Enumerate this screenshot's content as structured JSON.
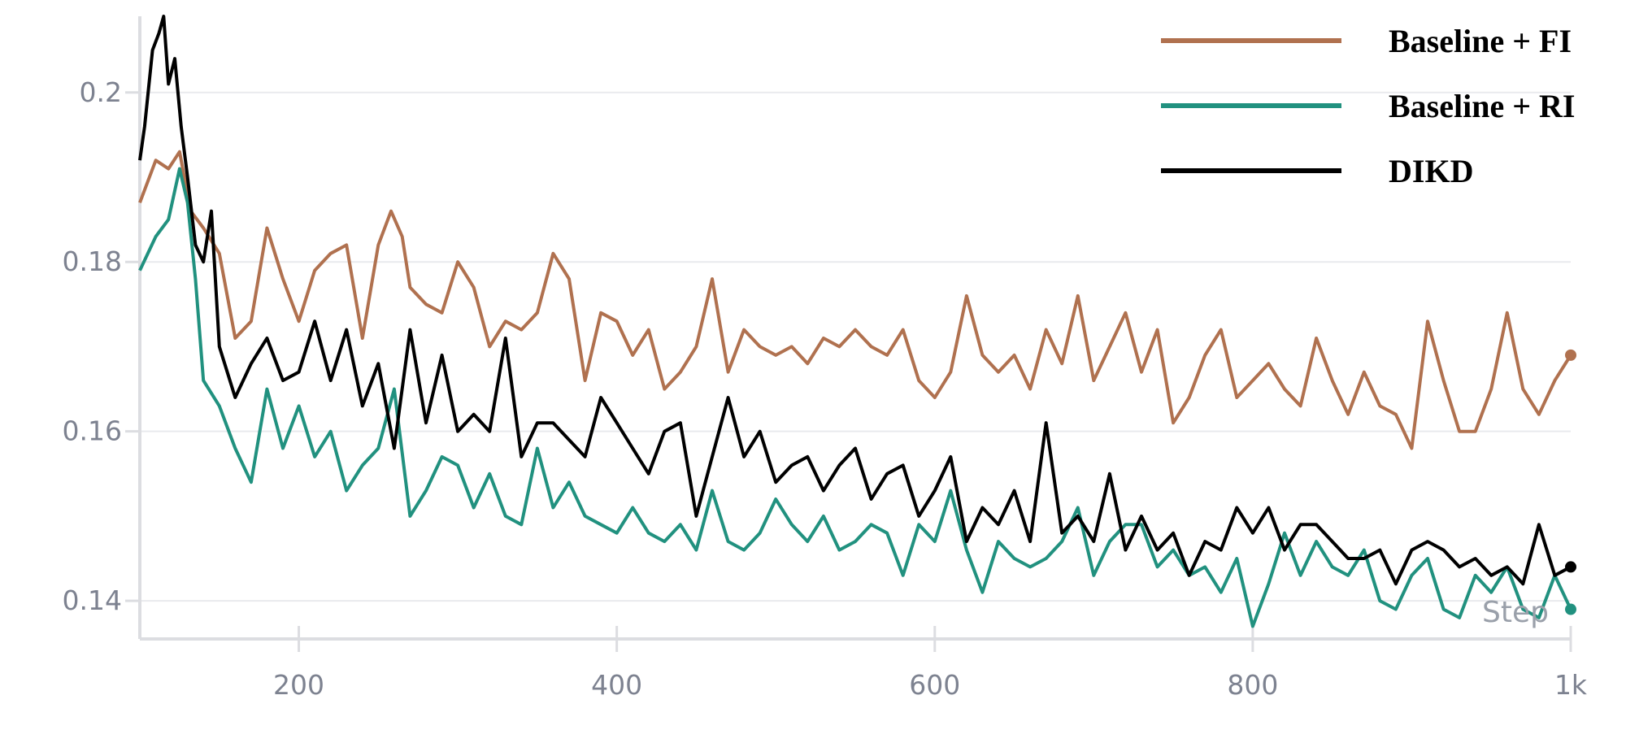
{
  "chart_data": {
    "type": "line",
    "xlabel": "Step",
    "ylabel": "",
    "title": "",
    "xlim": [
      100,
      1000
    ],
    "ylim": [
      0.1355,
      0.209
    ],
    "grid": true,
    "legend_position": "top-right",
    "x_ticks": [
      {
        "value": 200,
        "label": "200"
      },
      {
        "value": 400,
        "label": "400"
      },
      {
        "value": 600,
        "label": "600"
      },
      {
        "value": 800,
        "label": "800"
      },
      {
        "value": 1000,
        "label": "1k"
      }
    ],
    "y_ticks": [
      {
        "value": 0.14,
        "label": "0.14"
      },
      {
        "value": 0.16,
        "label": "0.16"
      },
      {
        "value": 0.18,
        "label": "0.18"
      },
      {
        "value": 0.2,
        "label": "0.2"
      }
    ],
    "series": [
      {
        "name": "Baseline + FI",
        "color": "#b0714f",
        "x": [
          100,
          110,
          118,
          125,
          132,
          140,
          150,
          160,
          170,
          180,
          190,
          200,
          210,
          220,
          230,
          240,
          250,
          258,
          265,
          270,
          280,
          290,
          300,
          310,
          320,
          330,
          340,
          350,
          360,
          370,
          380,
          390,
          400,
          410,
          420,
          430,
          440,
          450,
          460,
          470,
          480,
          490,
          500,
          510,
          520,
          530,
          540,
          550,
          560,
          570,
          580,
          590,
          600,
          610,
          620,
          630,
          640,
          650,
          660,
          670,
          680,
          690,
          700,
          710,
          720,
          730,
          740,
          750,
          760,
          770,
          780,
          790,
          800,
          810,
          820,
          830,
          840,
          850,
          860,
          870,
          880,
          890,
          900,
          910,
          920,
          930,
          940,
          950,
          960,
          970,
          980,
          990,
          1000
        ],
        "y": [
          0.187,
          0.192,
          0.191,
          0.193,
          0.186,
          0.184,
          0.181,
          0.171,
          0.173,
          0.184,
          0.178,
          0.173,
          0.179,
          0.181,
          0.182,
          0.171,
          0.182,
          0.186,
          0.183,
          0.177,
          0.175,
          0.174,
          0.18,
          0.177,
          0.17,
          0.173,
          0.172,
          0.174,
          0.181,
          0.178,
          0.166,
          0.174,
          0.173,
          0.169,
          0.172,
          0.165,
          0.167,
          0.17,
          0.178,
          0.167,
          0.172,
          0.17,
          0.169,
          0.17,
          0.168,
          0.171,
          0.17,
          0.172,
          0.17,
          0.169,
          0.172,
          0.166,
          0.164,
          0.167,
          0.176,
          0.169,
          0.167,
          0.169,
          0.165,
          0.172,
          0.168,
          0.176,
          0.166,
          0.17,
          0.174,
          0.167,
          0.172,
          0.161,
          0.164,
          0.169,
          0.172,
          0.164,
          0.166,
          0.168,
          0.165,
          0.163,
          0.171,
          0.166,
          0.162,
          0.167,
          0.163,
          0.162,
          0.158,
          0.173,
          0.166,
          0.16,
          0.16,
          0.165,
          0.174,
          0.165,
          0.162,
          0.166,
          0.169
        ]
      },
      {
        "name": "Baseline + RI",
        "color": "#21917f",
        "x": [
          100,
          110,
          118,
          125,
          130,
          135,
          140,
          150,
          160,
          170,
          180,
          190,
          200,
          210,
          220,
          230,
          240,
          250,
          260,
          270,
          280,
          290,
          300,
          310,
          320,
          330,
          340,
          350,
          360,
          370,
          380,
          390,
          400,
          410,
          420,
          430,
          440,
          450,
          460,
          470,
          480,
          490,
          500,
          510,
          520,
          530,
          540,
          550,
          560,
          570,
          580,
          590,
          600,
          610,
          620,
          630,
          640,
          650,
          660,
          670,
          680,
          690,
          700,
          710,
          720,
          730,
          740,
          750,
          760,
          770,
          780,
          790,
          800,
          810,
          820,
          830,
          840,
          850,
          860,
          870,
          880,
          890,
          900,
          910,
          920,
          930,
          940,
          950,
          960,
          970,
          980,
          990,
          1000
        ],
        "y": [
          0.179,
          0.183,
          0.185,
          0.191,
          0.187,
          0.178,
          0.166,
          0.163,
          0.158,
          0.154,
          0.165,
          0.158,
          0.163,
          0.157,
          0.16,
          0.153,
          0.156,
          0.158,
          0.165,
          0.15,
          0.153,
          0.157,
          0.156,
          0.151,
          0.155,
          0.15,
          0.149,
          0.158,
          0.151,
          0.154,
          0.15,
          0.149,
          0.148,
          0.151,
          0.148,
          0.147,
          0.149,
          0.146,
          0.153,
          0.147,
          0.146,
          0.148,
          0.152,
          0.149,
          0.147,
          0.15,
          0.146,
          0.147,
          0.149,
          0.148,
          0.143,
          0.149,
          0.147,
          0.153,
          0.146,
          0.141,
          0.147,
          0.145,
          0.144,
          0.145,
          0.147,
          0.151,
          0.143,
          0.147,
          0.149,
          0.149,
          0.144,
          0.146,
          0.143,
          0.144,
          0.141,
          0.145,
          0.137,
          0.142,
          0.148,
          0.143,
          0.147,
          0.144,
          0.143,
          0.146,
          0.14,
          0.139,
          0.143,
          0.145,
          0.139,
          0.138,
          0.143,
          0.141,
          0.144,
          0.139,
          0.138,
          0.143,
          0.139
        ]
      },
      {
        "name": "DIKD",
        "color": "#000000",
        "x": [
          100,
          103,
          108,
          112,
          115,
          118,
          122,
          126,
          130,
          135,
          140,
          145,
          150,
          160,
          170,
          180,
          190,
          200,
          210,
          220,
          230,
          240,
          250,
          260,
          270,
          280,
          290,
          300,
          310,
          320,
          330,
          340,
          350,
          360,
          370,
          380,
          390,
          400,
          410,
          420,
          430,
          440,
          450,
          460,
          470,
          480,
          490,
          500,
          510,
          520,
          530,
          540,
          550,
          560,
          570,
          580,
          590,
          600,
          610,
          620,
          630,
          640,
          650,
          660,
          670,
          680,
          690,
          700,
          710,
          720,
          730,
          740,
          750,
          760,
          770,
          780,
          790,
          800,
          810,
          820,
          830,
          840,
          850,
          860,
          870,
          880,
          890,
          900,
          910,
          920,
          930,
          940,
          950,
          960,
          970,
          980,
          990,
          1000
        ],
        "y": [
          0.192,
          0.196,
          0.205,
          0.207,
          0.209,
          0.201,
          0.204,
          0.196,
          0.19,
          0.182,
          0.18,
          0.186,
          0.17,
          0.164,
          0.168,
          0.171,
          0.166,
          0.167,
          0.173,
          0.166,
          0.172,
          0.163,
          0.168,
          0.158,
          0.172,
          0.161,
          0.169,
          0.16,
          0.162,
          0.16,
          0.171,
          0.157,
          0.161,
          0.161,
          0.159,
          0.157,
          0.164,
          0.161,
          0.158,
          0.155,
          0.16,
          0.161,
          0.15,
          0.157,
          0.164,
          0.157,
          0.16,
          0.154,
          0.156,
          0.157,
          0.153,
          0.156,
          0.158,
          0.152,
          0.155,
          0.156,
          0.15,
          0.153,
          0.157,
          0.147,
          0.151,
          0.149,
          0.153,
          0.147,
          0.161,
          0.148,
          0.15,
          0.147,
          0.155,
          0.146,
          0.15,
          0.146,
          0.148,
          0.143,
          0.147,
          0.146,
          0.151,
          0.148,
          0.151,
          0.146,
          0.149,
          0.149,
          0.147,
          0.145,
          0.145,
          0.146,
          0.142,
          0.146,
          0.147,
          0.146,
          0.144,
          0.145,
          0.143,
          0.144,
          0.142,
          0.149,
          0.143,
          0.144
        ]
      }
    ]
  }
}
